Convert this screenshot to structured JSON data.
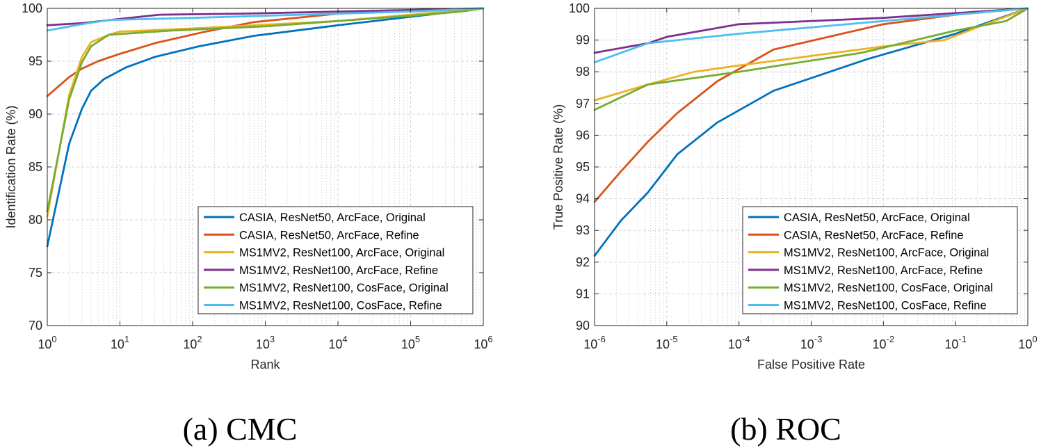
{
  "colors": [
    "#0072BD",
    "#D95319",
    "#EDB120",
    "#7E2F8E",
    "#77AC30",
    "#4DBEEE"
  ],
  "chart_data": [
    {
      "type": "line",
      "id": "cmc",
      "caption": "(a)  CMC",
      "xlabel": "Rank",
      "ylabel": "Identification Rate (%)",
      "xscale": "log",
      "xlim": [
        1,
        1000000
      ],
      "ylim": [
        70,
        100
      ],
      "xticks": [
        {
          "v": 1,
          "e": "0"
        },
        {
          "v": 10,
          "e": "1"
        },
        {
          "v": 100,
          "e": "2"
        },
        {
          "v": 1000,
          "e": "3"
        },
        {
          "v": 10000,
          "e": "4"
        },
        {
          "v": 100000,
          "e": "5"
        },
        {
          "v": 1000000,
          "e": "6"
        }
      ],
      "yticks": [
        70,
        75,
        80,
        85,
        90,
        95,
        100
      ],
      "legend_location": "bottom-right",
      "series": [
        {
          "name": "CASIA, ResNet50, ArcFace, Original",
          "x": [
            1,
            2,
            3,
            4,
            6,
            12,
            30,
            120,
            700,
            10000,
            100000,
            1000000
          ],
          "y": [
            77.5,
            87.2,
            90.5,
            92.2,
            93.3,
            94.4,
            95.4,
            96.4,
            97.4,
            98.4,
            99.2,
            100
          ]
        },
        {
          "name": "CASIA, ResNet50, ArcFace, Refine",
          "x": [
            1,
            2,
            3,
            5,
            10,
            30,
            150,
            700,
            10000,
            1000000
          ],
          "y": [
            91.7,
            93.5,
            94.3,
            95.0,
            95.7,
            96.7,
            97.8,
            98.7,
            99.5,
            100
          ]
        },
        {
          "name": "MS1MV2, ResNet100, ArcFace, Original",
          "x": [
            1,
            2,
            3,
            4,
            7,
            10,
            100,
            10000,
            1000000
          ],
          "y": [
            80.3,
            91.8,
            95.4,
            96.8,
            97.5,
            97.8,
            98.1,
            98.8,
            100
          ]
        },
        {
          "name": "MS1MV2, ResNet100, ArcFace, Refine",
          "x": [
            1,
            3,
            10,
            35,
            500,
            1000000
          ],
          "y": [
            98.4,
            98.6,
            99.0,
            99.4,
            99.5,
            100
          ]
        },
        {
          "name": "MS1MV2, ResNet100, CosFace, Original",
          "x": [
            1,
            2,
            3,
            4,
            7,
            50,
            1000,
            100000,
            500000,
            1000000
          ],
          "y": [
            80.8,
            91.4,
            94.9,
            96.4,
            97.5,
            97.9,
            98.3,
            99.3,
            99.7,
            100
          ]
        },
        {
          "name": "MS1MV2, ResNet100, CosFace, Refine",
          "x": [
            1,
            3,
            7,
            100,
            1000,
            100000,
            1000000
          ],
          "y": [
            97.9,
            98.5,
            98.9,
            99.1,
            99.3,
            99.7,
            100
          ]
        }
      ]
    },
    {
      "type": "line",
      "id": "roc",
      "caption": "(b)  ROC",
      "xlabel": "False Positive Rate",
      "ylabel": "True Positive Rate (%)",
      "xscale": "log",
      "xlim": [
        1e-06,
        1
      ],
      "ylim": [
        90,
        100
      ],
      "xticks": [
        {
          "v": 1e-06,
          "e": "-6"
        },
        {
          "v": 1e-05,
          "e": "-5"
        },
        {
          "v": 0.0001,
          "e": "-4"
        },
        {
          "v": 0.001,
          "e": "-3"
        },
        {
          "v": 0.01,
          "e": "-2"
        },
        {
          "v": 0.1,
          "e": "-1"
        },
        {
          "v": 1,
          "e": "0"
        }
      ],
      "yticks": [
        90,
        91,
        92,
        93,
        94,
        95,
        96,
        97,
        98,
        99,
        100
      ],
      "legend_location": "bottom-right",
      "series": [
        {
          "name": "CASIA, ResNet50, ArcFace, Original",
          "x": [
            1e-06,
            2.3e-06,
            5.5e-06,
            1.4e-05,
            5e-05,
            0.0003,
            0.006,
            0.1,
            1
          ],
          "y": [
            92.2,
            93.3,
            94.2,
            95.4,
            96.4,
            97.4,
            98.4,
            99.2,
            100
          ]
        },
        {
          "name": "CASIA, ResNet50, ArcFace, Refine",
          "x": [
            1e-06,
            2.2e-06,
            5.5e-06,
            1.4e-05,
            5e-05,
            0.0003,
            0.01,
            0.1,
            1
          ],
          "y": [
            93.9,
            94.8,
            95.8,
            96.7,
            97.7,
            98.7,
            99.5,
            99.8,
            100
          ]
        },
        {
          "name": "MS1MV2, ResNet100, ArcFace, Original",
          "x": [
            1e-06,
            5.5e-06,
            2.4e-05,
            0.0001,
            0.001,
            0.01,
            0.07,
            0.2,
            1
          ],
          "y": [
            97.1,
            97.6,
            98.0,
            98.2,
            98.5,
            98.8,
            99.0,
            99.4,
            100
          ]
        },
        {
          "name": "MS1MV2, ResNet100, ArcFace, Refine",
          "x": [
            1e-06,
            5.5e-06,
            1e-05,
            0.0001,
            0.001,
            0.01,
            1
          ],
          "y": [
            98.6,
            98.9,
            99.1,
            99.5,
            99.6,
            99.7,
            100
          ]
        },
        {
          "name": "MS1MV2, ResNet100, CosFace, Original",
          "x": [
            1e-06,
            5.5e-06,
            0.0001,
            0.005,
            0.1,
            0.5,
            1
          ],
          "y": [
            96.8,
            97.6,
            98.0,
            98.6,
            99.3,
            99.6,
            100
          ]
        },
        {
          "name": "MS1MV2, ResNet100, CosFace, Refine",
          "x": [
            1e-06,
            5.5e-06,
            0.0001,
            0.01,
            0.1,
            1
          ],
          "y": [
            98.3,
            98.9,
            99.2,
            99.6,
            99.8,
            100
          ]
        }
      ]
    }
  ]
}
